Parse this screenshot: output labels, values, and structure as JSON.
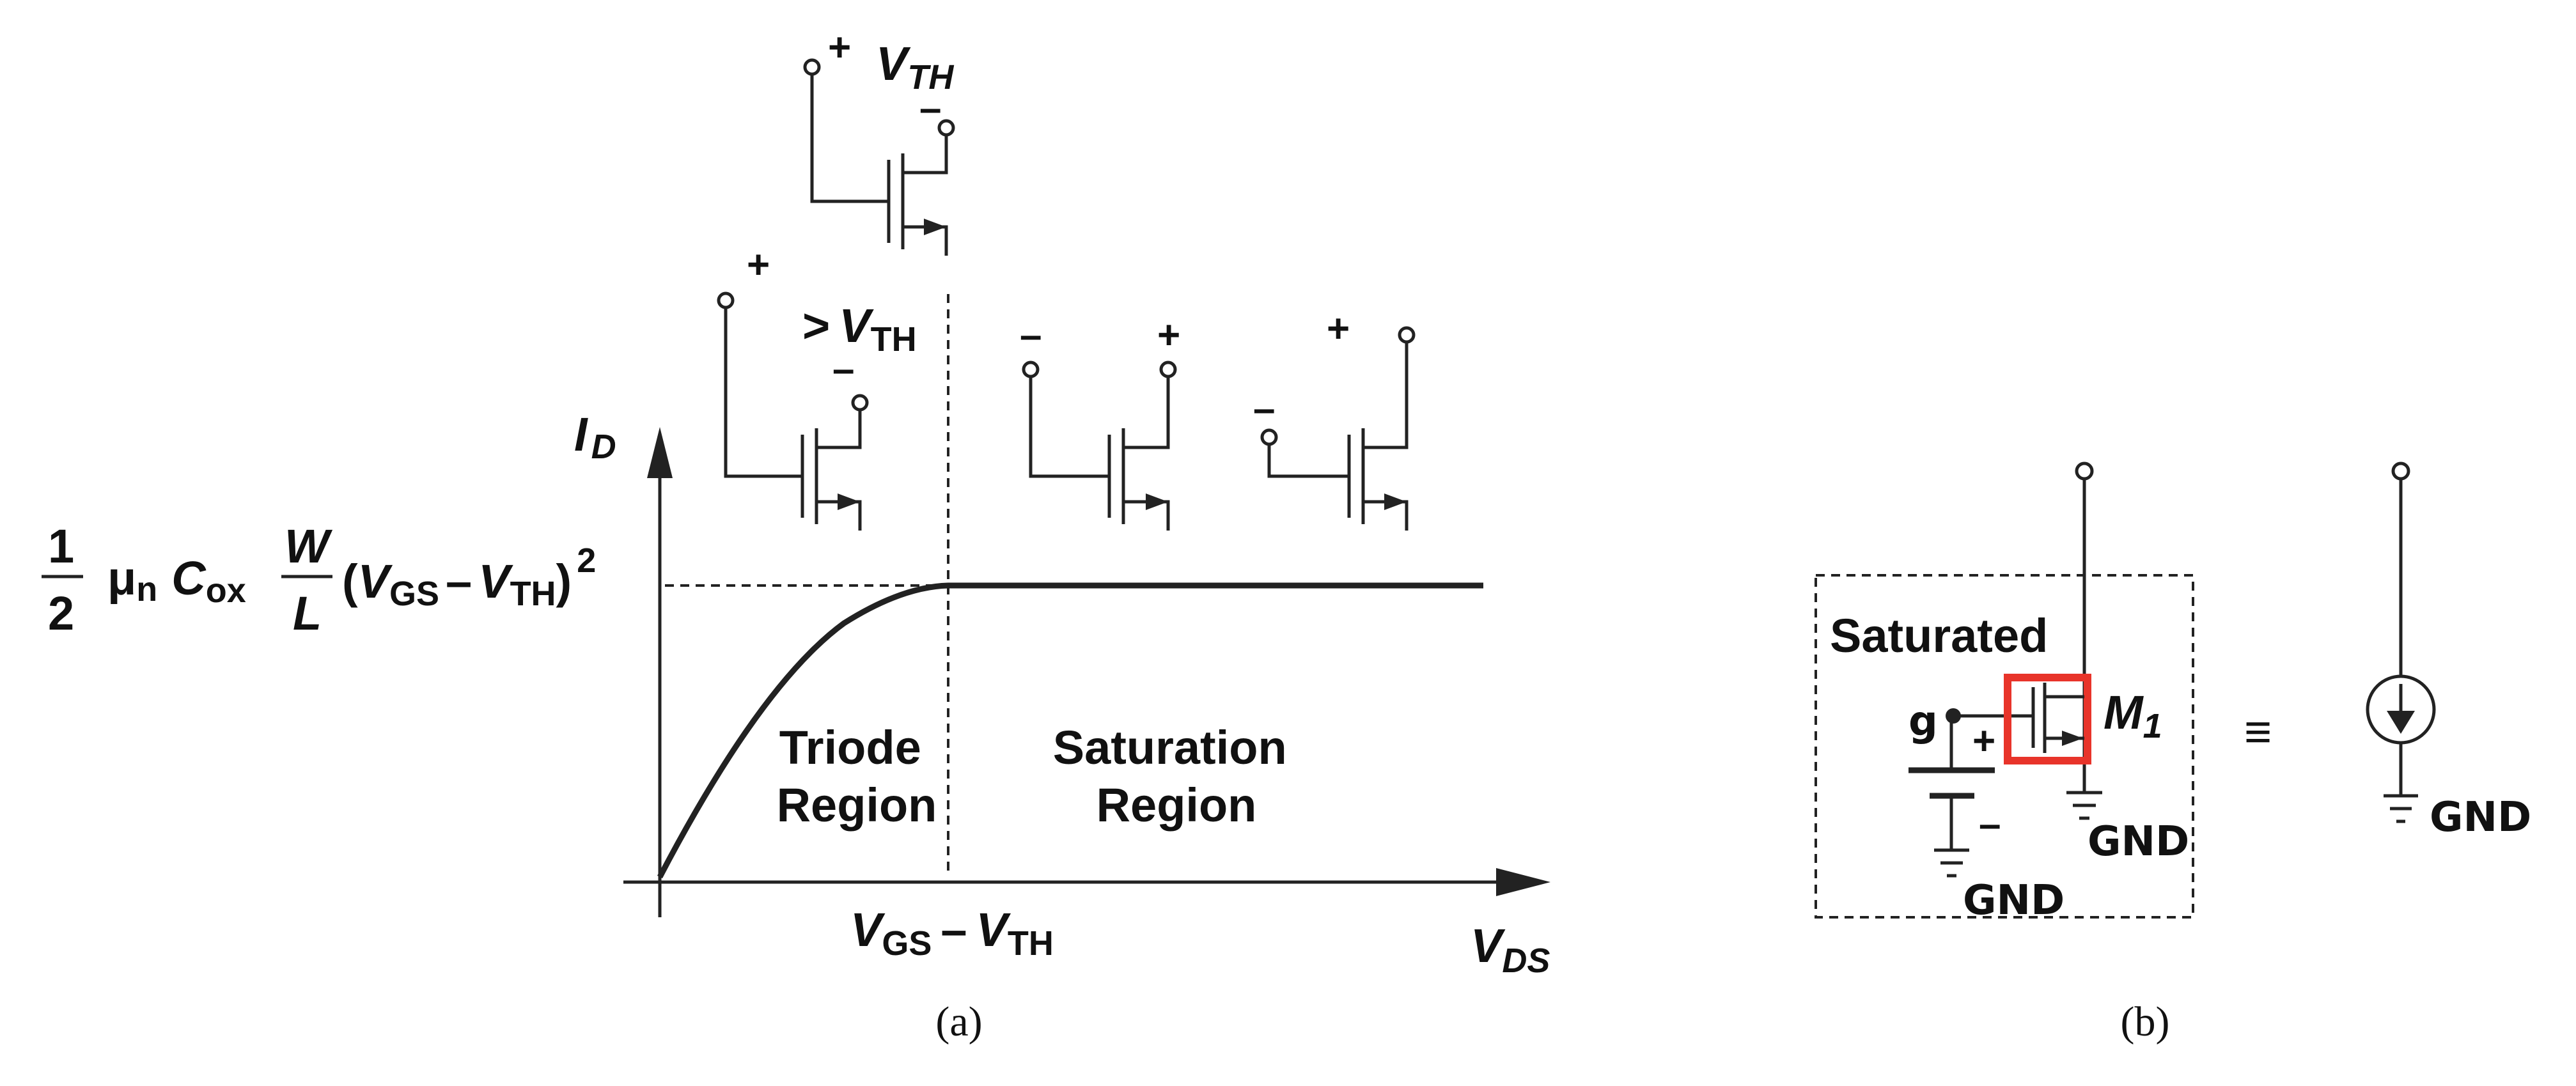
{
  "panel_a": {
    "caption": "(a)",
    "y_axis_label": "I",
    "y_axis_sub": "D",
    "x_axis_label": "V",
    "x_axis_sub": "DS",
    "x_marker": {
      "v1": "V",
      "s1": "GS",
      "minus": "–",
      "v2": "V",
      "s2": "TH"
    },
    "y_level_formula": {
      "half_num": "1",
      "half_den": "2",
      "mu": "μ",
      "mu_sub": "n",
      "c": "C",
      "c_sub": "ox",
      "w": "W",
      "l": "L",
      "open": "(",
      "v1": "V",
      "s1": "GS",
      "minus": "–",
      "v2": "V",
      "s2": "TH",
      "close": ")",
      "power": "2"
    },
    "region_triode": [
      "Triode",
      "Region"
    ],
    "region_saturation": [
      "Saturation",
      "Region"
    ],
    "transistor_top": {
      "plus": "+",
      "minus": "–",
      "v": "V",
      "sub": "TH"
    },
    "transistor_triode": {
      "plus": "+",
      "minus": "–",
      "gt": ">",
      "v": "V",
      "sub": "TH"
    },
    "transistor_sat_1": {
      "minus": "–",
      "plus": "+"
    },
    "transistor_sat_2": {
      "plus": "+",
      "minus": "–"
    }
  },
  "panel_b": {
    "caption": "(b)",
    "state_label": "Saturated",
    "gate_note": "g",
    "plus": "+",
    "minus": "–",
    "device": "M",
    "device_sub": "1",
    "equiv": "≡",
    "gnd_source": "GND",
    "gnd_device": "GND",
    "gnd_current_source": "GND",
    "highlight_color": "#e8342a"
  }
}
